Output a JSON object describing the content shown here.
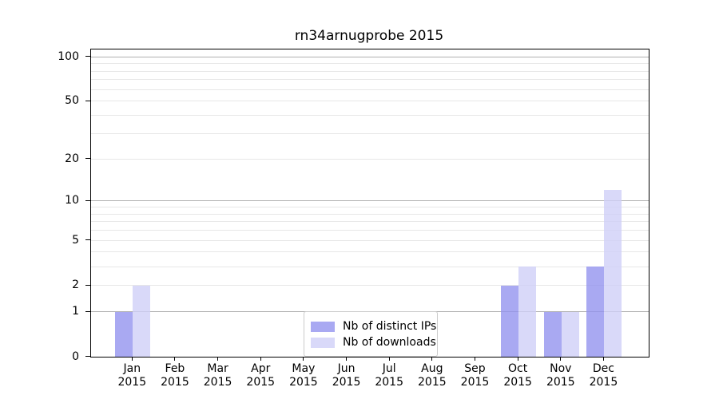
{
  "chart_data": {
    "type": "bar",
    "title": "rn34arnugprobe 2015",
    "year_label": "2015",
    "categories": [
      "Jan",
      "Feb",
      "Mar",
      "Apr",
      "May",
      "Jun",
      "Jul",
      "Aug",
      "Sep",
      "Oct",
      "Nov",
      "Dec"
    ],
    "series": [
      {
        "name": "Nb of distinct IPs",
        "color": "#a9a9f2",
        "fill": "rgba(147,147,239,0.8)",
        "values": [
          1,
          0,
          0,
          0,
          0,
          0,
          0,
          0,
          0,
          2,
          1,
          3
        ]
      },
      {
        "name": "Nb of downloads",
        "color": "#d9d9f9",
        "fill": "rgba(208,208,248,0.8)",
        "values": [
          2,
          0,
          0,
          0,
          0,
          0,
          0,
          0,
          0,
          3,
          1,
          12
        ]
      }
    ],
    "yscale": "log1p",
    "ylim": [
      0,
      112
    ],
    "ytick_labels": [
      "100",
      "50",
      "20",
      "10",
      "5",
      "2",
      "1",
      "0"
    ],
    "ytick_values": [
      100,
      50,
      20,
      10,
      5,
      2,
      1,
      0
    ],
    "major_gridlines": [
      1,
      10,
      100
    ],
    "minor_gridlines": [
      2,
      3,
      4,
      5,
      6,
      7,
      8,
      9,
      20,
      30,
      40,
      50,
      60,
      70,
      80,
      90
    ],
    "grid_colors": {
      "major": "#b0b0b0",
      "minor": "#e7e7e7"
    },
    "legend_position": "lower center"
  }
}
